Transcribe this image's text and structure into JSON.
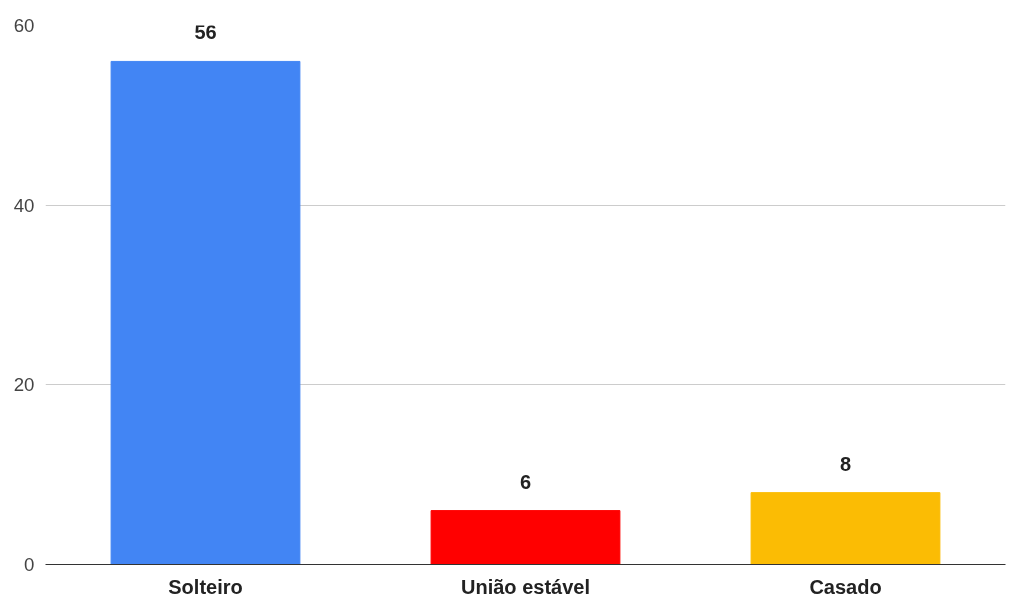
{
  "chart_data": {
    "type": "bar",
    "categories": [
      "Solteiro",
      "União estável",
      "Casado"
    ],
    "values": [
      56,
      6,
      8
    ],
    "colors": [
      "#4285f4",
      "#ff0000",
      "#fbbc04"
    ],
    "ylim": [
      0,
      60
    ],
    "yticks": [
      0,
      20,
      40,
      60
    ],
    "grid": "y",
    "data_labels": true
  }
}
